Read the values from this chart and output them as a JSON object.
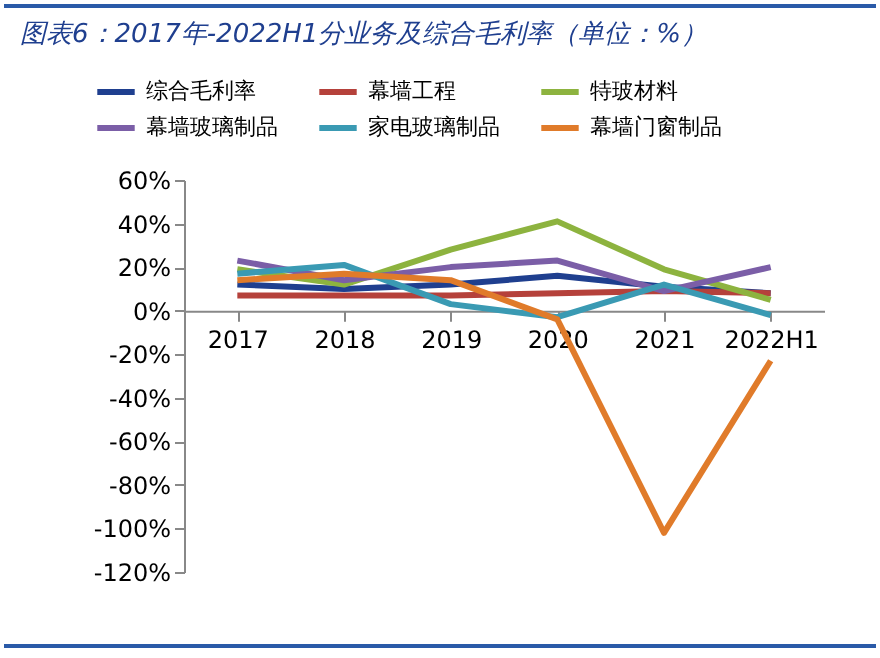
{
  "chart_data": {
    "type": "line",
    "title": "图表6：2017年-2022H1分业务及综合毛利率（单位：%）",
    "categories": [
      "2017",
      "2018",
      "2019",
      "2020",
      "2021",
      "2022H1"
    ],
    "series": [
      {
        "name": "综合毛利率",
        "color": "#1f3f8f",
        "values": [
          12,
          10,
          12,
          16,
          11,
          8
        ]
      },
      {
        "name": "幕墙工程",
        "color": "#b5413b",
        "values": [
          7,
          7,
          7,
          8,
          9,
          8
        ]
      },
      {
        "name": "特玻材料",
        "color": "#8db33f",
        "values": [
          19,
          12,
          28,
          41,
          19,
          5
        ]
      },
      {
        "name": "幕墙玻璃制品",
        "color": "#7b5ea7",
        "values": [
          23,
          14,
          20,
          23,
          9,
          20
        ]
      },
      {
        "name": "家电玻璃制品",
        "color": "#3a9ab3",
        "values": [
          17,
          21,
          3,
          -3,
          12,
          -2
        ]
      },
      {
        "name": "幕墙门窗制品",
        "color": "#e07b2a",
        "values": [
          14,
          17,
          14,
          -4,
          -102,
          -23
        ]
      }
    ],
    "ylim": [
      -120,
      60
    ],
    "yticks": [
      {
        "value": -120,
        "label": "-120%"
      },
      {
        "value": -100,
        "label": "-100%"
      },
      {
        "value": -80,
        "label": "-80%"
      },
      {
        "value": -60,
        "label": "-60%"
      },
      {
        "value": -40,
        "label": "-40%"
      },
      {
        "value": -20,
        "label": "-20%"
      },
      {
        "value": 0,
        "label": "0%"
      },
      {
        "value": 20,
        "label": "20%"
      },
      {
        "value": 40,
        "label": "40%"
      },
      {
        "value": 60,
        "label": "60%"
      }
    ],
    "legend": "top",
    "grid": false,
    "line_style": "solid",
    "marker": "none"
  }
}
